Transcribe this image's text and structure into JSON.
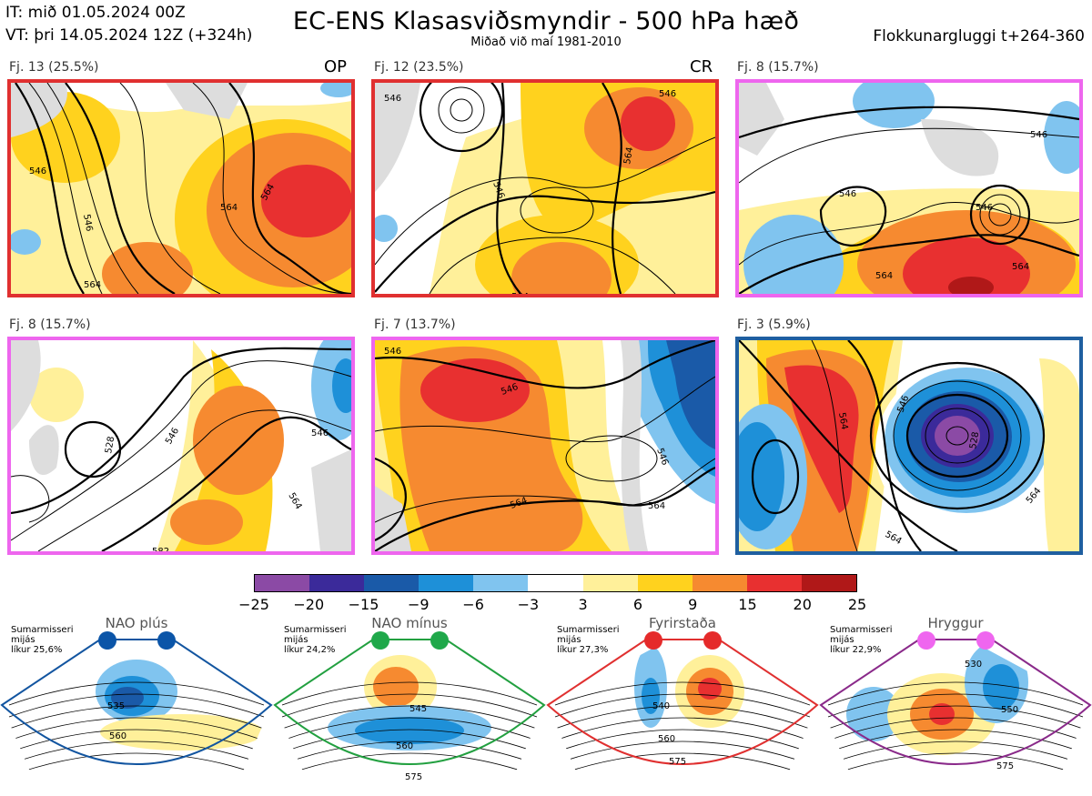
{
  "header": {
    "initial_time": "IT: mið 01.05.2024 00Z",
    "valid_time": "VT: þri 14.05.2024 12Z  (+324h)",
    "title": "EC-ENS Klasasviðsmyndir - 500 hPa hæð",
    "subtitle": "Miðað við maí 1981-2010",
    "window": "Flokkunargluggi t+264-360"
  },
  "clusters": [
    {
      "label": "Fj. 13 (25.5%)",
      "tag": "OP",
      "border": "#e03030",
      "contours": [
        "546",
        "564",
        "546",
        "564",
        "564"
      ]
    },
    {
      "label": "Fj. 12 (23.5%)",
      "tag": "CR",
      "border": "#e03030",
      "contours": [
        "546",
        "546",
        "564",
        "546",
        "564"
      ]
    },
    {
      "label": "Fj. 8 (15.7%)",
      "tag": "",
      "border": "#ee66ee",
      "contours": [
        "546",
        "546",
        "546",
        "564",
        "564"
      ]
    },
    {
      "label": "Fj. 8 (15.7%)",
      "tag": "",
      "border": "#ee66ee",
      "contours": [
        "528",
        "546",
        "546",
        "564",
        "582"
      ]
    },
    {
      "label": "Fj. 7 (13.7%)",
      "tag": "",
      "border": "#ee66ee",
      "contours": [
        "546",
        "546",
        "546",
        "564",
        "564"
      ]
    },
    {
      "label": "Fj. 3 (5.9%)",
      "tag": "",
      "border": "#1f5fa0",
      "contours": [
        "528",
        "546",
        "564",
        "564",
        "564"
      ]
    }
  ],
  "colorbar": {
    "ticks": [
      "−25",
      "−20",
      "−15",
      "−9",
      "−6",
      "−3",
      "3",
      "6",
      "9",
      "15",
      "20",
      "25"
    ],
    "colors": [
      "#8b4aa5",
      "#3b2a9a",
      "#1a5aa8",
      "#1e90d8",
      "#80c4ef",
      "#ffffff",
      "#fff09a",
      "#ffd21e",
      "#f68a30",
      "#e83030",
      "#b01818"
    ]
  },
  "regimes": [
    {
      "name": "NAO plús",
      "season": "Sumarmisseri",
      "mean": "mijás",
      "prob": "líkur 25,6%",
      "dot": "#0b55a8",
      "border": "#1255a0",
      "contours": [
        "535",
        "560"
      ]
    },
    {
      "name": "NAO mínus",
      "season": "Sumarmisseri",
      "mean": "mijás",
      "prob": "líkur 24,2%",
      "dot": "#1fa84a",
      "border": "#22a040",
      "contours": [
        "545",
        "560",
        "575"
      ]
    },
    {
      "name": "Fyrirstaða",
      "season": "Sumarmisseri",
      "mean": "mijás",
      "prob": "líkur 27,3%",
      "dot": "#e52a2a",
      "border": "#e03030",
      "contours": [
        "540",
        "560",
        "575"
      ]
    },
    {
      "name": "Hryggur",
      "season": "Sumarmisseri",
      "mean": "mijás",
      "prob": "líkur 22,9%",
      "dot": "#ef66ef",
      "border": "#8a2a8a",
      "contours": [
        "530",
        "550",
        "575"
      ]
    }
  ]
}
